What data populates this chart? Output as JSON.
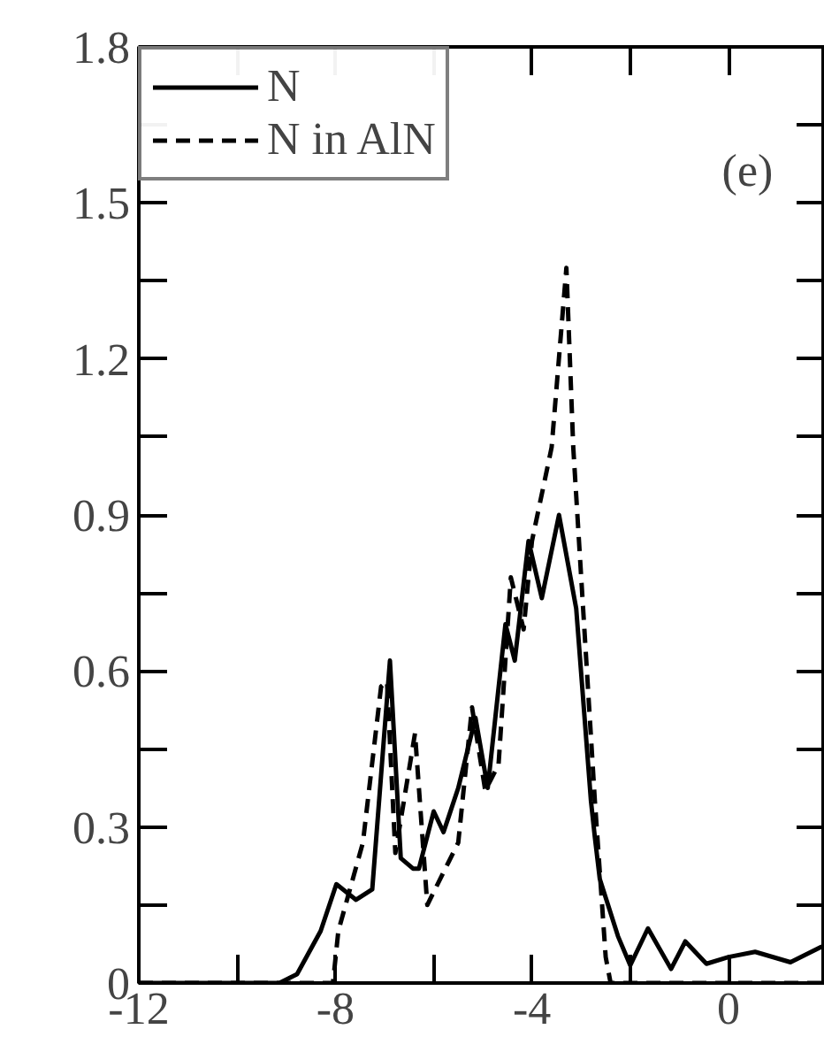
{
  "chart_data": {
    "type": "line",
    "annotations": [
      "(e)"
    ],
    "xlim": [
      -12,
      1.96
    ],
    "ylim": [
      0,
      1.8
    ],
    "xticks": [
      -12,
      {
        "value": -10,
        "label": null
      },
      -8,
      {
        "value": -6,
        "label": null
      },
      -4,
      {
        "value": -2,
        "label": null
      },
      0
    ],
    "yticks": [
      0,
      {
        "value": 0.15,
        "label": null
      },
      0.3,
      {
        "value": 0.45,
        "label": null
      },
      0.6,
      {
        "value": 0.75,
        "label": null
      },
      0.9,
      {
        "value": 1.05,
        "label": null
      },
      1.2,
      {
        "value": 1.35,
        "label": null
      },
      1.5,
      {
        "value": 1.65,
        "label": null
      },
      1.8
    ],
    "grid": false,
    "legend": "top left",
    "series": [
      {
        "name": "N",
        "color": "#000000",
        "line_style": "solid",
        "x": [
          -12,
          -9.14,
          -8.78,
          -8.3,
          -7.98,
          -7.58,
          -7.25,
          -6.89,
          -6.67,
          -6.42,
          -6.3,
          -6.0,
          -5.8,
          -5.5,
          -5.15,
          -4.9,
          -4.54,
          -4.35,
          -4.07,
          -3.8,
          -3.45,
          -3.1,
          -2.8,
          -2.72,
          -2.62,
          -2.25,
          -2.0,
          -1.64,
          -1.17,
          -0.88,
          -0.45,
          0.0,
          0.54,
          1.26,
          1.9
        ],
        "values": [
          0,
          0,
          0.017,
          0.1,
          0.19,
          0.16,
          0.18,
          0.62,
          0.24,
          0.22,
          0.22,
          0.33,
          0.29,
          0.375,
          0.51,
          0.375,
          0.69,
          0.62,
          0.85,
          0.74,
          0.9,
          0.72,
          0.35,
          0.28,
          0.2,
          0.09,
          0.034,
          0.105,
          0.027,
          0.08,
          0.037,
          0.05,
          0.06,
          0.04,
          0.07
        ]
      },
      {
        "name": "N in AlN",
        "color": "#000000",
        "line_style": "dashed",
        "x": [
          -12,
          -8.05,
          -7.94,
          -7.44,
          -7.07,
          -6.95,
          -6.78,
          -6.38,
          -6.13,
          -5.5,
          -5.22,
          -4.95,
          -4.68,
          -4.43,
          -4.17,
          -4.0,
          -3.6,
          -3.3,
          -3.16,
          -3.05,
          -2.72,
          -2.5,
          -2.4,
          1.96
        ],
        "values": [
          0,
          0,
          0.1,
          0.27,
          0.57,
          0.58,
          0.25,
          0.48,
          0.15,
          0.27,
          0.53,
          0.37,
          0.42,
          0.78,
          0.68,
          0.85,
          1.03,
          1.375,
          1.03,
          0.86,
          0.35,
          0.05,
          0,
          0
        ]
      }
    ]
  }
}
